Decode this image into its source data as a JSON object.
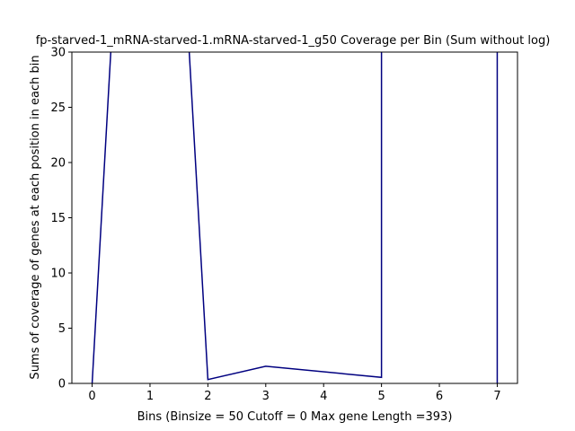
{
  "chart_data": {
    "type": "line",
    "title": "fp-starved-1_mRNA-starved-1.mRNA-starved-1_g50 Coverage per Bin (Sum without log)",
    "xlabel": "Bins  (Binsize = 50 Cutoff = 0 Max gene Length =393)",
    "ylabel": "Sums of coverage of genes at each position in each bin",
    "xlim": [
      -0.35,
      7.35
    ],
    "ylim": [
      0,
      30
    ],
    "xticks": [
      0,
      1,
      2,
      3,
      4,
      5,
      6,
      7
    ],
    "yticks": [
      0,
      5,
      10,
      15,
      20,
      25,
      30
    ],
    "grid": false,
    "line_color": "#000080",
    "series": [
      {
        "x": [
          0,
          0.333,
          1.667,
          2,
          3,
          5,
          5,
          7,
          7
        ],
        "values": [
          0,
          31,
          31,
          0.35,
          1.55,
          0.55,
          31,
          31,
          0
        ]
      }
    ]
  }
}
